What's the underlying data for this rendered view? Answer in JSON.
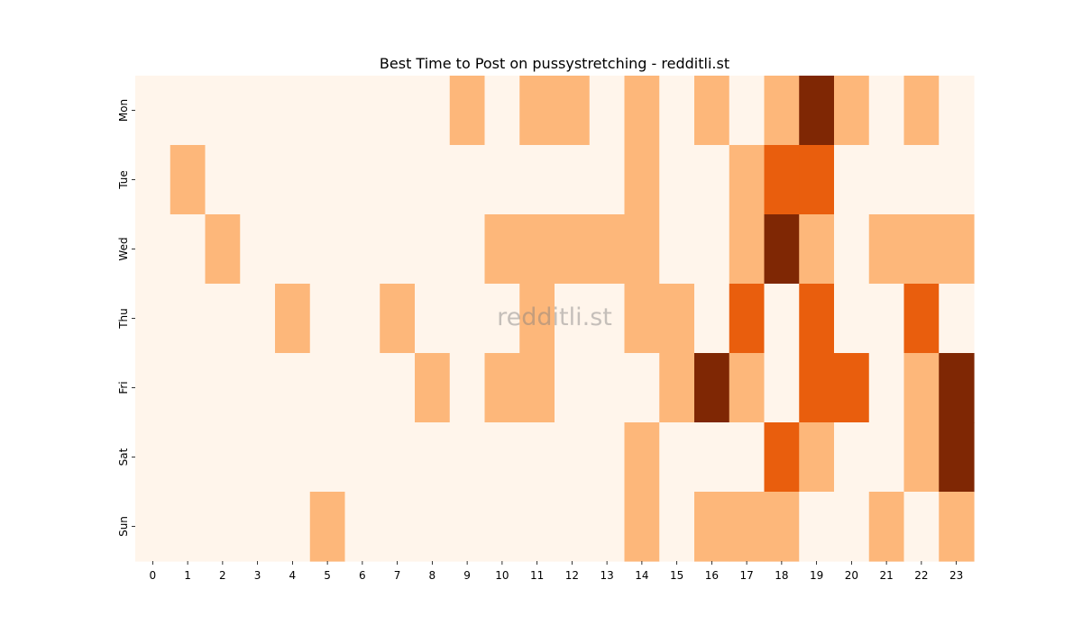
{
  "chart_data": {
    "type": "heatmap",
    "title": "Best Time to Post on pussystretching - redditli.st",
    "watermark": "redditli.st",
    "x_categories": [
      "0",
      "1",
      "2",
      "3",
      "4",
      "5",
      "6",
      "7",
      "8",
      "9",
      "10",
      "11",
      "12",
      "13",
      "14",
      "15",
      "16",
      "17",
      "18",
      "19",
      "20",
      "21",
      "22",
      "23"
    ],
    "y_categories": [
      "Mon",
      "Tue",
      "Wed",
      "Thu",
      "Fri",
      "Sat",
      "Sun"
    ],
    "values": [
      [
        0,
        0,
        0,
        0,
        0,
        0,
        0,
        0,
        0,
        1,
        0,
        1,
        1,
        0,
        1,
        0,
        1,
        0,
        1,
        3,
        1,
        0,
        1,
        0
      ],
      [
        0,
        1,
        0,
        0,
        0,
        0,
        0,
        0,
        0,
        0,
        0,
        0,
        0,
        0,
        1,
        0,
        0,
        1,
        2,
        2,
        0,
        0,
        0,
        0
      ],
      [
        0,
        0,
        1,
        0,
        0,
        0,
        0,
        0,
        0,
        0,
        1,
        1,
        1,
        1,
        1,
        0,
        0,
        1,
        3,
        1,
        0,
        1,
        1,
        1
      ],
      [
        0,
        0,
        0,
        0,
        1,
        0,
        0,
        1,
        0,
        0,
        0,
        1,
        0,
        0,
        1,
        1,
        0,
        2,
        0,
        2,
        0,
        0,
        2,
        0
      ],
      [
        0,
        0,
        0,
        0,
        0,
        0,
        0,
        0,
        1,
        0,
        1,
        1,
        0,
        0,
        0,
        1,
        3,
        1,
        0,
        2,
        2,
        0,
        1,
        3
      ],
      [
        0,
        0,
        0,
        0,
        0,
        0,
        0,
        0,
        0,
        0,
        0,
        0,
        0,
        0,
        1,
        0,
        0,
        0,
        2,
        1,
        0,
        0,
        1,
        3
      ],
      [
        0,
        0,
        0,
        0,
        0,
        1,
        0,
        0,
        0,
        0,
        0,
        0,
        0,
        0,
        1,
        0,
        1,
        1,
        1,
        0,
        0,
        1,
        0,
        1
      ]
    ],
    "value_range": [
      0,
      3
    ],
    "colormap": [
      "#fff5eb",
      "#fdb77a",
      "#e95e0d",
      "#7f2704"
    ],
    "colorbar": false,
    "grid": false
  }
}
